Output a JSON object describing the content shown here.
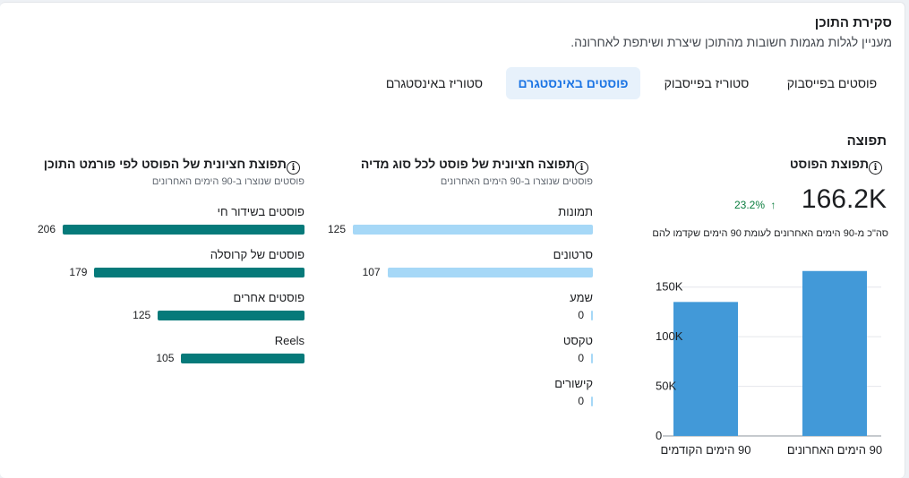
{
  "header": {
    "title": "סקירת התוכן",
    "subtitle": "מעניין לגלות מגמות חשובות מהתוכן שיצרת ושיתפת לאחרונה."
  },
  "tabs": [
    {
      "label": "פוסטים בפייסבוק",
      "active": false
    },
    {
      "label": "סטוריז בפייסבוק",
      "active": false
    },
    {
      "label": "פוסטים באינסטגרם",
      "active": true
    },
    {
      "label": "סטוריז באינסטגרם",
      "active": false
    }
  ],
  "section_label": "תפוצה",
  "reach_panel": {
    "title": "תפוצת הפוסט",
    "value": "166.2K",
    "change": "23.2%",
    "change_arrow": "↑",
    "note": "סה\"כ מ-90 הימים האחרונים לעומת 90 הימים שקדמו להם"
  },
  "media_panel": {
    "title": "תפוצה חציונית של פוסט לכל סוג מדיה",
    "subtitle": "פוסטים שנוצרו ב-90 הימים האחרונים",
    "rows": [
      {
        "label": "תמונות",
        "value": 125,
        "value_label": "125"
      },
      {
        "label": "סרטונים",
        "value": 107,
        "value_label": "107"
      },
      {
        "label": "שמע",
        "value": 0,
        "value_label": "0"
      },
      {
        "label": "טקסט",
        "value": 0,
        "value_label": "0"
      },
      {
        "label": "קישורים",
        "value": 0,
        "value_label": "0"
      }
    ]
  },
  "format_panel": {
    "title": "תפוצת חציונית של הפוסט לפי פורמט התוכן",
    "subtitle": "פוסטים שנוצרו ב-90 הימים האחרונים",
    "rows": [
      {
        "label": "פוסטים בשידור חי",
        "value": 206,
        "value_label": "206"
      },
      {
        "label": "פוסטים של קרוסלה",
        "value": 179,
        "value_label": "179"
      },
      {
        "label": "פוסטים אחרים",
        "value": 125,
        "value_label": "125"
      },
      {
        "label": "Reels",
        "value": 105,
        "value_label": "105"
      }
    ]
  },
  "chart_data": {
    "type": "bar",
    "categories": [
      "90 הימים האחרונים",
      "90 הימים הקודמים"
    ],
    "values": [
      166.2,
      135
    ],
    "yticks": [
      "0",
      "50K",
      "100K",
      "150K"
    ],
    "ylim": [
      0,
      175
    ],
    "grid": true,
    "bar_color": "#4299d8"
  }
}
